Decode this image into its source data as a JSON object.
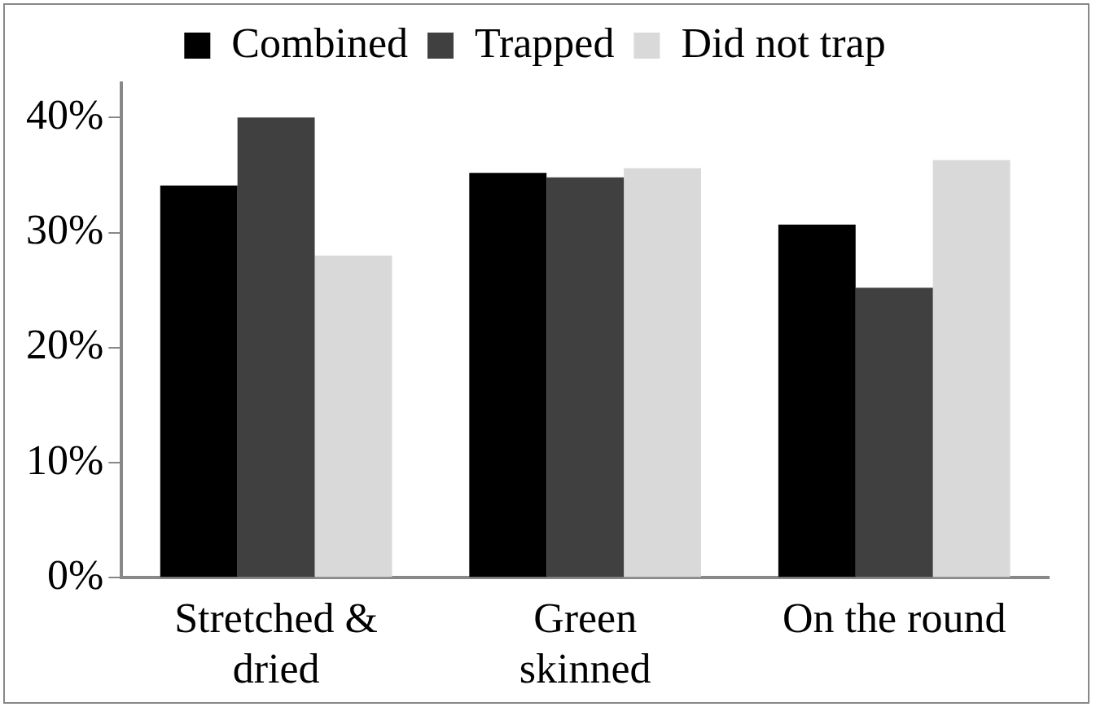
{
  "chart_data": {
    "type": "bar",
    "categories": [
      [
        "Stretched &",
        "dried"
      ],
      [
        "Green",
        "skinned"
      ],
      [
        "On the round"
      ]
    ],
    "series": [
      {
        "name": "Combined",
        "color": "#000000",
        "values": [
          34.1,
          35.2,
          30.7
        ]
      },
      {
        "name": "Trapped",
        "color": "#404040",
        "values": [
          40,
          34.8,
          25.2
        ]
      },
      {
        "name": "Did not trap",
        "color": "#d9d9d9",
        "values": [
          28,
          35.6,
          36.3
        ]
      }
    ],
    "ylim": [
      0,
      43
    ],
    "yticks": [
      {
        "value": 0,
        "label": "0%"
      },
      {
        "value": 10,
        "label": "10%"
      },
      {
        "value": 20,
        "label": "20%"
      },
      {
        "value": 30,
        "label": "30%"
      },
      {
        "value": 40,
        "label": "40%"
      }
    ],
    "grid": false,
    "legend": "top"
  }
}
